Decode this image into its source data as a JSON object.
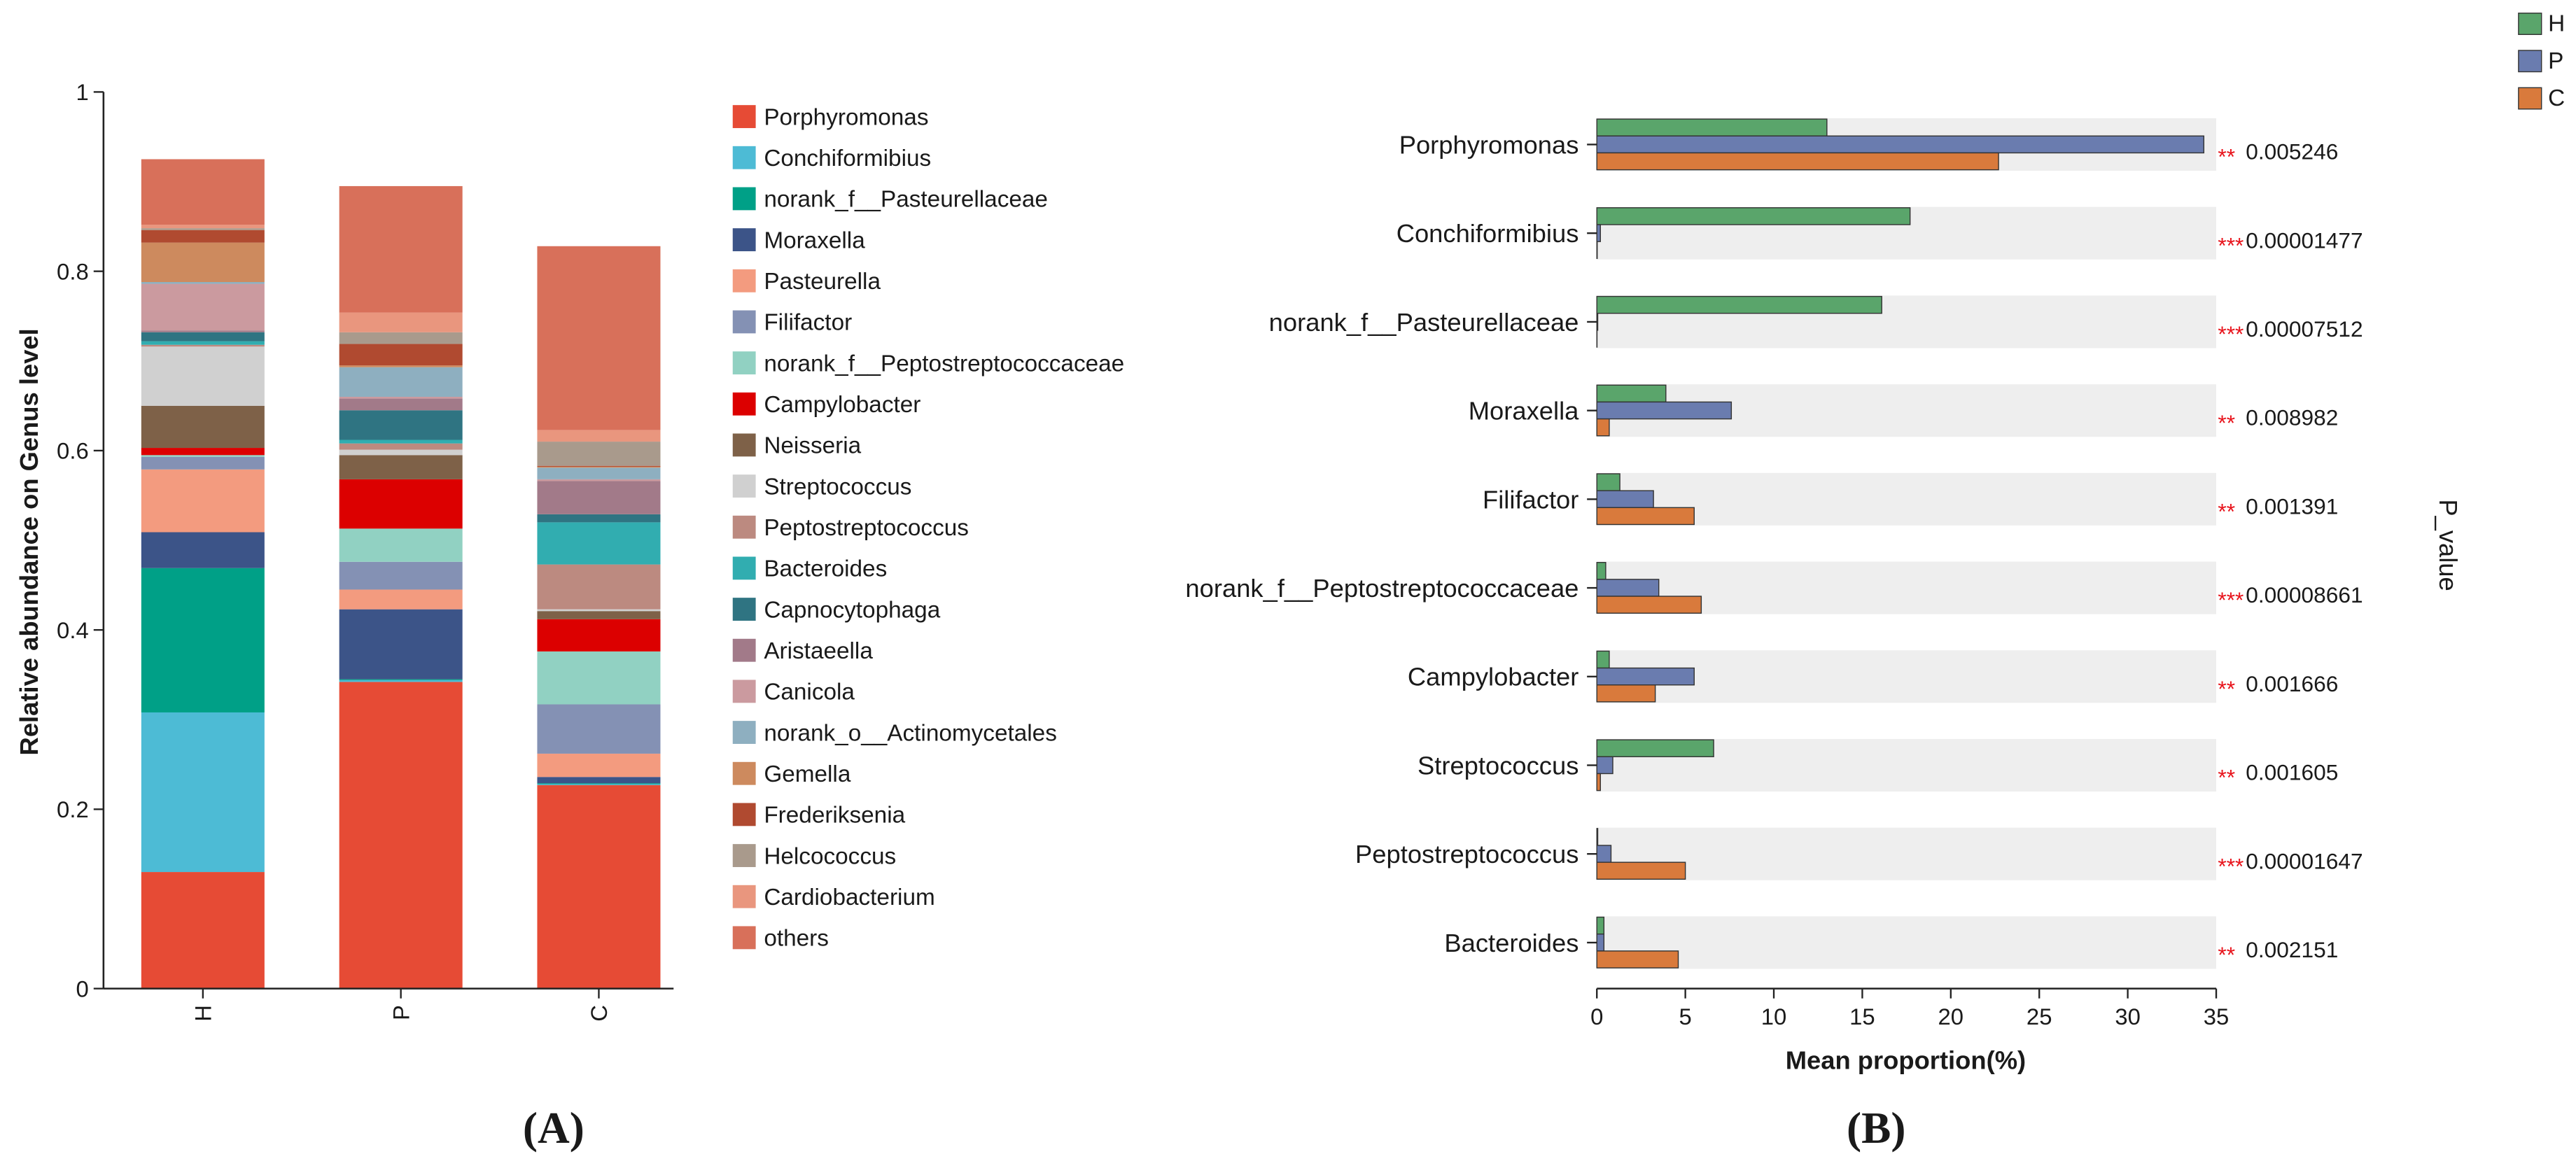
{
  "figure": {
    "panel_a_label": "(A)",
    "panel_b_label": "(B)"
  },
  "chart_data": [
    {
      "type": "bar",
      "stacked": true,
      "title": "",
      "xlabel": "",
      "ylabel": "Relative abundance on Genus level",
      "ylim": [
        0,
        1
      ],
      "yticks": [
        0,
        0.2,
        0.4,
        0.6,
        0.8,
        1
      ],
      "grid": false,
      "legend_position": "right",
      "categories": [
        "H",
        "P",
        "C"
      ],
      "series": [
        {
          "name": "Porphyromonas",
          "color": "#E64B35",
          "values": [
            0.13,
            0.342,
            0.227
          ]
        },
        {
          "name": "Conchiformibius",
          "color": "#4DBBD5",
          "values": [
            0.178,
            0.002,
            0.001
          ]
        },
        {
          "name": "norank_f__Pasteurellaceae",
          "color": "#00A087",
          "values": [
            0.161,
            0.001,
            0.001
          ]
        },
        {
          "name": "Moraxella",
          "color": "#3C5488",
          "values": [
            0.04,
            0.078,
            0.007
          ]
        },
        {
          "name": "Pasteurella",
          "color": "#F39B7F",
          "values": [
            0.07,
            0.022,
            0.026
          ]
        },
        {
          "name": "Filifactor",
          "color": "#8491B4",
          "values": [
            0.014,
            0.031,
            0.055
          ]
        },
        {
          "name": "norank_f__Peptostreptococcaceae",
          "color": "#91D1C2",
          "values": [
            0.002,
            0.037,
            0.059
          ]
        },
        {
          "name": "Campylobacter",
          "color": "#DC0000",
          "values": [
            0.008,
            0.055,
            0.036
          ]
        },
        {
          "name": "Neisseria",
          "color": "#7E6148",
          "values": [
            0.047,
            0.027,
            0.009
          ]
        },
        {
          "name": "Streptococcus",
          "color": "#D0D0D0",
          "values": [
            0.066,
            0.006,
            0.002
          ]
        },
        {
          "name": "Peptostreptococcus",
          "color": "#BC8A80",
          "values": [
            0.002,
            0.007,
            0.05
          ]
        },
        {
          "name": "Bacteroides",
          "color": "#31ADB0",
          "values": [
            0.004,
            0.004,
            0.047
          ]
        },
        {
          "name": "Capnocytophaga",
          "color": "#2F7482",
          "values": [
            0.01,
            0.033,
            0.009
          ]
        },
        {
          "name": "Aristaeella",
          "color": "#A27A89",
          "values": [
            0.002,
            0.013,
            0.037
          ]
        },
        {
          "name": "Canicola",
          "color": "#CB9A9F",
          "values": [
            0.052,
            0.002,
            0.002
          ]
        },
        {
          "name": "norank_o__Actinomycetales",
          "color": "#8EAFC0",
          "values": [
            0.002,
            0.033,
            0.013
          ]
        },
        {
          "name": "Gemella",
          "color": "#CD8A5E",
          "values": [
            0.044,
            0.002,
            0.001
          ]
        },
        {
          "name": "Frederiksenia",
          "color": "#B04A30",
          "values": [
            0.014,
            0.024,
            0.001
          ]
        },
        {
          "name": "Helcococcus",
          "color": "#A99A8C",
          "values": [
            0.002,
            0.013,
            0.027
          ]
        },
        {
          "name": "Cardiobacterium",
          "color": "#E9967E",
          "values": [
            0.004,
            0.022,
            0.013
          ]
        },
        {
          "name": "others",
          "color": "#D8705A",
          "values": [
            0.073,
            0.141,
            0.205
          ]
        }
      ]
    },
    {
      "type": "bar",
      "orientation": "horizontal",
      "title": "",
      "xlabel": "Mean proportion(%)",
      "ylabel": "",
      "xlim": [
        0,
        35
      ],
      "xticks": [
        0,
        5,
        10,
        15,
        20,
        25,
        30,
        35
      ],
      "grid": false,
      "legend_position": "top-right",
      "categories": [
        "Porphyromonas",
        "Conchiformibius",
        "norank_f__Pasteurellaceae",
        "Moraxella",
        "Filifactor",
        "norank_f__Peptostreptococcaceae",
        "Campylobacter",
        "Streptococcus",
        "Peptostreptococcus",
        "Bacteroides"
      ],
      "series": [
        {
          "name": "H",
          "color": "#5AA56B",
          "values": [
            13.0,
            17.7,
            16.1,
            3.9,
            1.3,
            0.5,
            0.7,
            6.6,
            0.05,
            0.4
          ]
        },
        {
          "name": "P",
          "color": "#6A7CAF",
          "values": [
            34.3,
            0.2,
            0.05,
            7.6,
            3.2,
            3.5,
            5.5,
            0.9,
            0.8,
            0.4
          ]
        },
        {
          "name": "C",
          "color": "#D97A3C",
          "values": [
            22.7,
            0.02,
            0.01,
            0.7,
            5.5,
            5.9,
            3.3,
            0.2,
            5.0,
            4.6
          ]
        }
      ],
      "p_value_label": "P_value",
      "significance": [
        "**",
        "***",
        "***",
        "**",
        "**",
        "***",
        "**",
        "**",
        "***",
        "**"
      ],
      "p_values": [
        "0.005246",
        "0.00001477",
        "0.00007512",
        "0.008982",
        "0.001391",
        "0.00008661",
        "0.001666",
        "0.001605",
        "0.00001647",
        "0.002151"
      ]
    }
  ]
}
